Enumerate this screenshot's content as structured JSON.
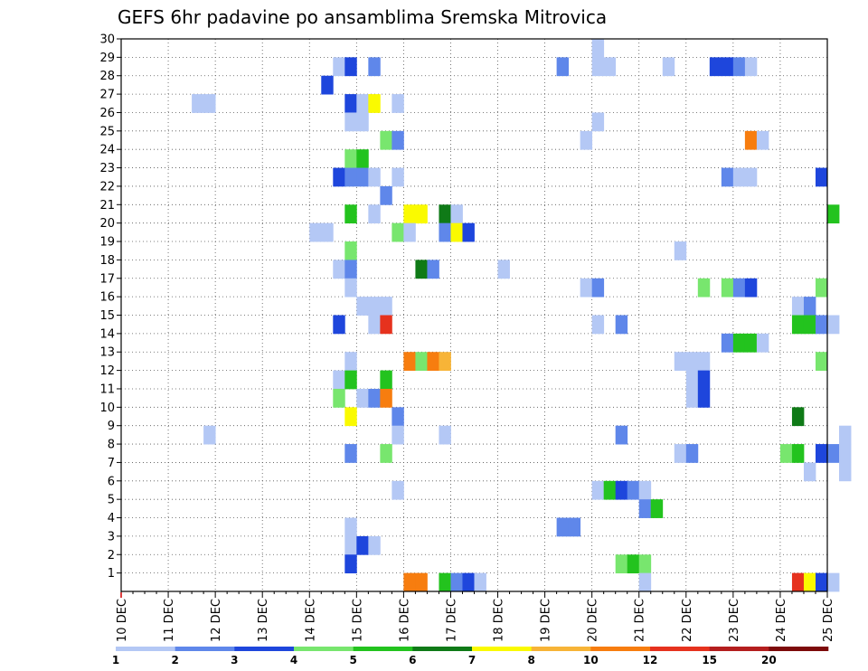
{
  "chart_data": {
    "type": "heatmap",
    "title": "GEFS 6hr padavine po ansamblima Sremska Mitrovica",
    "xlabel": "",
    "ylabel": "",
    "x_start": "2018-12-10T00",
    "x_end": "2018-12-25T00",
    "x_step_hours": 6,
    "x_tick_labels": [
      "10 DEC",
      "11 DEC",
      "12 DEC",
      "13 DEC",
      "14 DEC",
      "15 DEC",
      "16 DEC",
      "17 DEC",
      "18 DEC",
      "19 DEC",
      "20 DEC",
      "21 DEC",
      "22 DEC",
      "23 DEC",
      "24 DEC",
      "25 DEC"
    ],
    "y_tick_labels": [
      "1",
      "2",
      "3",
      "4",
      "5",
      "6",
      "7",
      "8",
      "9",
      "10",
      "11",
      "12",
      "13",
      "14",
      "15",
      "16",
      "17",
      "18",
      "19",
      "20",
      "21",
      "22",
      "23",
      "24",
      "25",
      "26",
      "27",
      "28",
      "29",
      "30"
    ],
    "ylim": [
      0,
      30
    ],
    "grid": true,
    "colorbar": {
      "levels": [
        1,
        2,
        3,
        4,
        5,
        6,
        7,
        8,
        10,
        12,
        15,
        20
      ],
      "level_labels": [
        "1",
        "2",
        "3",
        "4",
        "5",
        "6",
        "7",
        "8",
        "10",
        "12",
        "15",
        "20"
      ],
      "colors": [
        "#b4c8f5",
        "#5f87ea",
        "#1e46dc",
        "#78e66e",
        "#23c31e",
        "#0f7a17",
        "#fafa00",
        "#f7b437",
        "#f77d0f",
        "#e6321e",
        "#b41e1e",
        "#7d0a0a"
      ]
    },
    "cells": [
      [
        4.5,
        29,
        1
      ],
      [
        4.75,
        29,
        3
      ],
      [
        5.25,
        29,
        2
      ],
      [
        9.25,
        29,
        2
      ],
      [
        10,
        29,
        1
      ],
      [
        10.25,
        29,
        1
      ],
      [
        11.5,
        29,
        1
      ],
      [
        12.5,
        29,
        3
      ],
      [
        12.75,
        29,
        3
      ],
      [
        13,
        29,
        2
      ],
      [
        13.25,
        29,
        1
      ],
      [
        10,
        30,
        1
      ],
      [
        4.25,
        28,
        3
      ],
      [
        1.5,
        27,
        1
      ],
      [
        1.75,
        27,
        1
      ],
      [
        4.75,
        27,
        3
      ],
      [
        5,
        27,
        1
      ],
      [
        5.25,
        27,
        7
      ],
      [
        5.75,
        27,
        1
      ],
      [
        4.75,
        26,
        1
      ],
      [
        5,
        26,
        1
      ],
      [
        10,
        26,
        1
      ],
      [
        5.5,
        25,
        4
      ],
      [
        5.75,
        25,
        2
      ],
      [
        9.75,
        25,
        1
      ],
      [
        13.25,
        25,
        9
      ],
      [
        13.5,
        25,
        1
      ],
      [
        4.75,
        24,
        4
      ],
      [
        5,
        24,
        5
      ],
      [
        4.5,
        23,
        3
      ],
      [
        4.75,
        23,
        2
      ],
      [
        5,
        23,
        2
      ],
      [
        5.25,
        23,
        1
      ],
      [
        5.75,
        23,
        1
      ],
      [
        12.75,
        23,
        2
      ],
      [
        13,
        23,
        1
      ],
      [
        13.25,
        23,
        1
      ],
      [
        14.75,
        23,
        3
      ],
      [
        5.5,
        22,
        2
      ],
      [
        4.75,
        21,
        5
      ],
      [
        5.25,
        21,
        1
      ],
      [
        6,
        21,
        7
      ],
      [
        6.25,
        21,
        7
      ],
      [
        6.75,
        21,
        6
      ],
      [
        7,
        21,
        1
      ],
      [
        15,
        21,
        5
      ],
      [
        4,
        20,
        1
      ],
      [
        4.25,
        20,
        1
      ],
      [
        5.75,
        20,
        4
      ],
      [
        6,
        20,
        1
      ],
      [
        6.75,
        20,
        2
      ],
      [
        7,
        20,
        7
      ],
      [
        7.25,
        20,
        3
      ],
      [
        4.75,
        19,
        4
      ],
      [
        11.75,
        19,
        1
      ],
      [
        4.5,
        18,
        1
      ],
      [
        4.75,
        18,
        2
      ],
      [
        6.25,
        18,
        6
      ],
      [
        6.5,
        18,
        2
      ],
      [
        8,
        18,
        1
      ],
      [
        4.75,
        17,
        1
      ],
      [
        9.75,
        17,
        1
      ],
      [
        10,
        17,
        2
      ],
      [
        12.25,
        17,
        4
      ],
      [
        12.75,
        17,
        4
      ],
      [
        13,
        17,
        2
      ],
      [
        13.25,
        17,
        3
      ],
      [
        14.75,
        17,
        4
      ],
      [
        5,
        16,
        1
      ],
      [
        5.25,
        16,
        1
      ],
      [
        5.5,
        16,
        1
      ],
      [
        14.25,
        16,
        1
      ],
      [
        14.5,
        16,
        2
      ],
      [
        4.5,
        15,
        3
      ],
      [
        5.25,
        15,
        1
      ],
      [
        5.5,
        15,
        10
      ],
      [
        10,
        15,
        1
      ],
      [
        10.5,
        15,
        2
      ],
      [
        14.25,
        15,
        5
      ],
      [
        14.5,
        15,
        5
      ],
      [
        14.75,
        15,
        2
      ],
      [
        15,
        15,
        1
      ],
      [
        12.75,
        14,
        2
      ],
      [
        13,
        14,
        5
      ],
      [
        13.25,
        14,
        5
      ],
      [
        13.5,
        14,
        1
      ],
      [
        4.75,
        13,
        1
      ],
      [
        6,
        13,
        9
      ],
      [
        6.25,
        13,
        4
      ],
      [
        6.5,
        13,
        9
      ],
      [
        6.75,
        13,
        8
      ],
      [
        11.75,
        13,
        1
      ],
      [
        12,
        13,
        1
      ],
      [
        12.25,
        13,
        1
      ],
      [
        14.75,
        13,
        4
      ],
      [
        4.5,
        12,
        1
      ],
      [
        4.75,
        12,
        5
      ],
      [
        5.5,
        12,
        5
      ],
      [
        12,
        12,
        1
      ],
      [
        12.25,
        12,
        3
      ],
      [
        4.5,
        11,
        4
      ],
      [
        5,
        11,
        1
      ],
      [
        5.25,
        11,
        2
      ],
      [
        5.5,
        11,
        9
      ],
      [
        12,
        11,
        1
      ],
      [
        12.25,
        11,
        3
      ],
      [
        4.75,
        10,
        7
      ],
      [
        5.75,
        10,
        2
      ],
      [
        14.25,
        10,
        6
      ],
      [
        1.75,
        9,
        1
      ],
      [
        5.75,
        9,
        1
      ],
      [
        6.75,
        9,
        1
      ],
      [
        10.5,
        9,
        2
      ],
      [
        15.25,
        9,
        1
      ],
      [
        4.75,
        8,
        2
      ],
      [
        5.5,
        8,
        4
      ],
      [
        11.75,
        8,
        1
      ],
      [
        12,
        8,
        2
      ],
      [
        14,
        8,
        4
      ],
      [
        14.25,
        8,
        5
      ],
      [
        14.75,
        8,
        3
      ],
      [
        15,
        8,
        2
      ],
      [
        15.25,
        8,
        1
      ],
      [
        14.5,
        7,
        1
      ],
      [
        15.25,
        7,
        1
      ],
      [
        5.75,
        6,
        1
      ],
      [
        10,
        6,
        1
      ],
      [
        10.25,
        6,
        5
      ],
      [
        10.5,
        6,
        3
      ],
      [
        10.75,
        6,
        2
      ],
      [
        11,
        6,
        1
      ],
      [
        11,
        5,
        2
      ],
      [
        11.25,
        5,
        5
      ],
      [
        4.75,
        4,
        1
      ],
      [
        9.25,
        4,
        2
      ],
      [
        9.5,
        4,
        2
      ],
      [
        4.75,
        3,
        1
      ],
      [
        5,
        3,
        3
      ],
      [
        5.25,
        3,
        1
      ],
      [
        4.75,
        2,
        3
      ],
      [
        10.5,
        2,
        4
      ],
      [
        10.75,
        2,
        5
      ],
      [
        11,
        2,
        4
      ],
      [
        6,
        1,
        9
      ],
      [
        6.25,
        1,
        9
      ],
      [
        6.75,
        1,
        5
      ],
      [
        7,
        1,
        2
      ],
      [
        7.25,
        1,
        3
      ],
      [
        7.5,
        1,
        1
      ],
      [
        11,
        1,
        1
      ],
      [
        14.25,
        1,
        10
      ],
      [
        14.5,
        1,
        7
      ],
      [
        14.75,
        1,
        3
      ],
      [
        15,
        1,
        1
      ]
    ]
  }
}
